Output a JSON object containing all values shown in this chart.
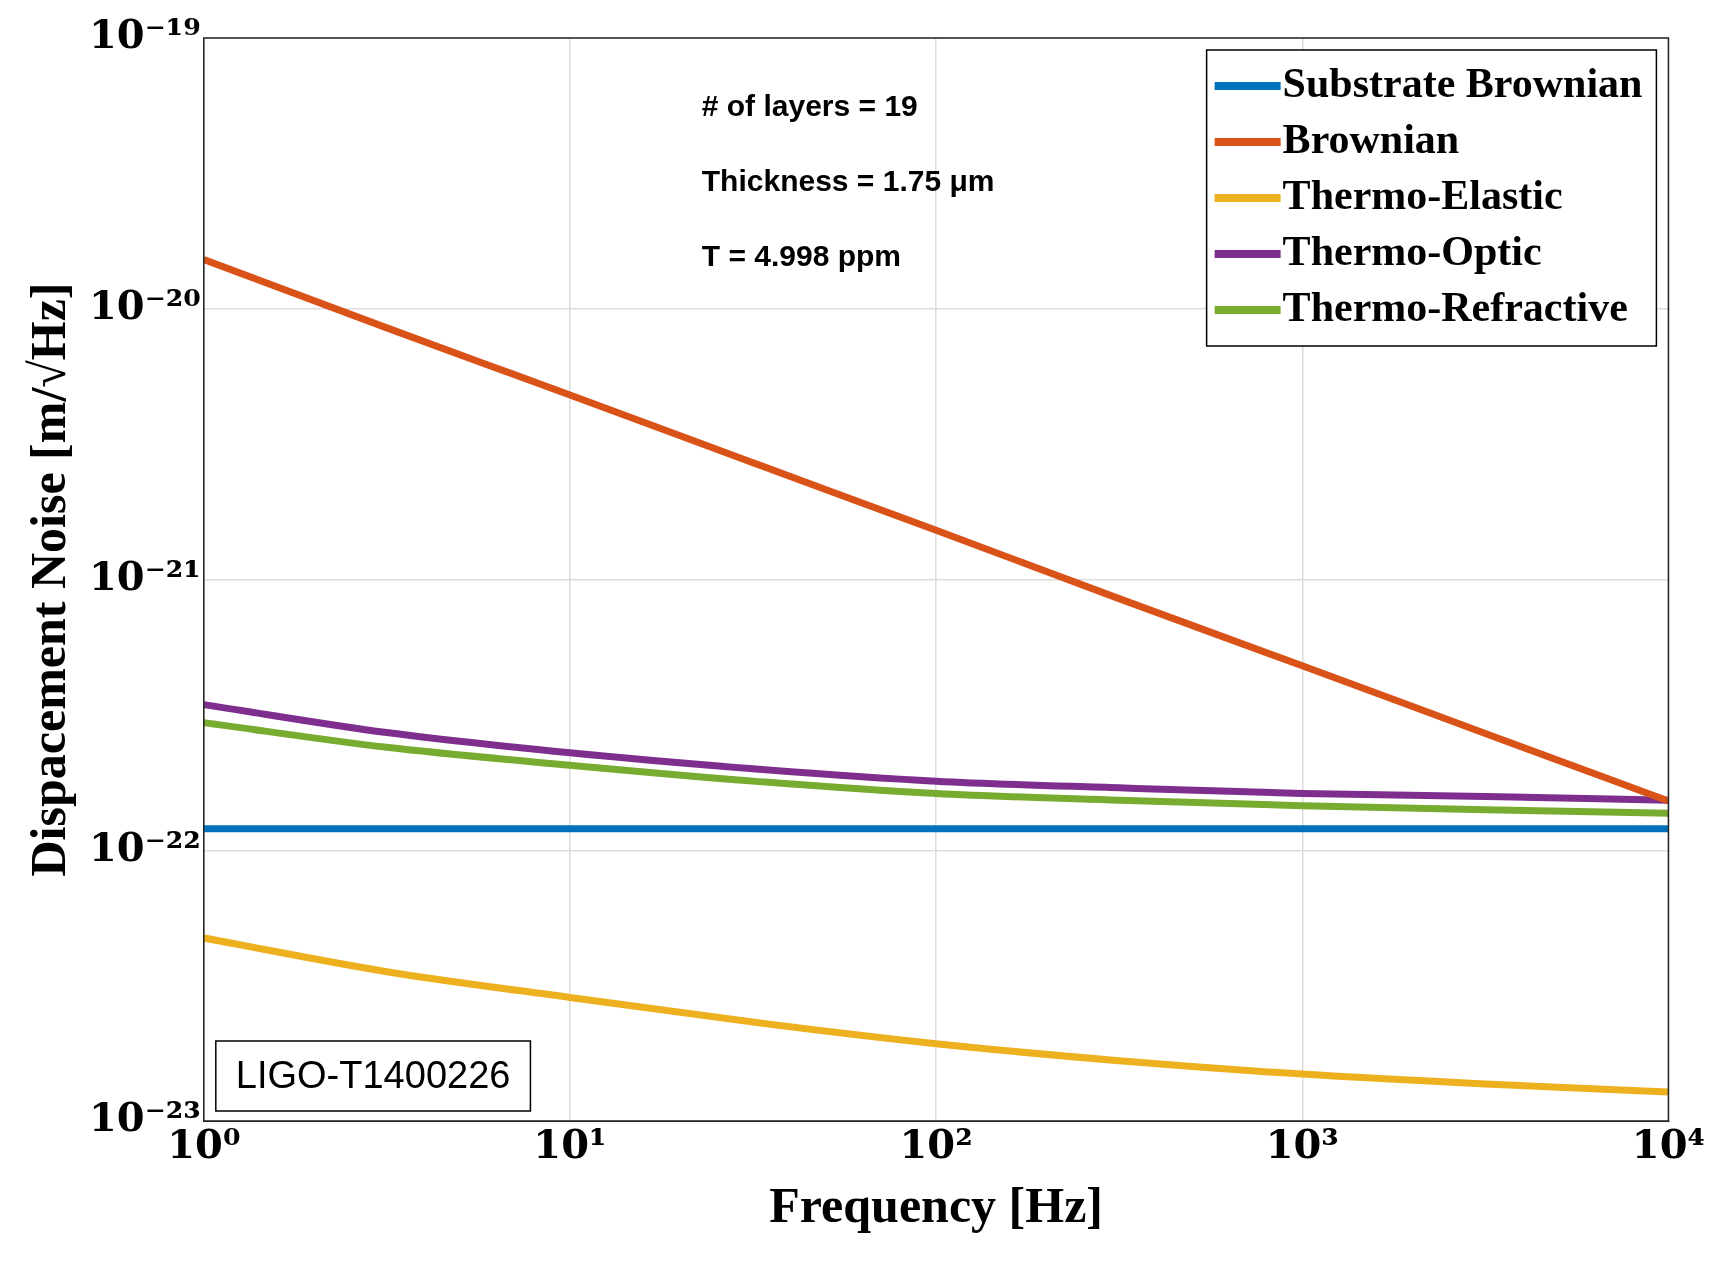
{
  "chart_data": {
    "type": "line",
    "xlabel": "Frequency [Hz]",
    "ylabel": "Dispacement Noise [m/√Hz]",
    "log": "xy",
    "grid": true,
    "legend": "top right",
    "xlim": [
      1,
      10000
    ],
    "xticks": [
      {
        "value": 1,
        "label": "10⁰"
      },
      {
        "value": 10,
        "label": "10¹"
      },
      {
        "value": 100,
        "label": "10²"
      },
      {
        "value": 1000,
        "label": "10³"
      },
      {
        "value": 10000,
        "label": "10⁴"
      }
    ],
    "ylim": [
      1e-23,
      1e-19
    ],
    "yticks": [
      {
        "value": 1e-23,
        "label": "10⁻²³"
      },
      {
        "value": 1e-22,
        "label": "10⁻²²"
      },
      {
        "value": 1e-21,
        "label": "10⁻²¹"
      },
      {
        "value": 1e-20,
        "label": "10⁻²⁰"
      },
      {
        "value": 1e-19,
        "label": "10⁻¹⁹"
      }
    ],
    "x": [
      1,
      3.16,
      10,
      31.6,
      100,
      316,
      1000,
      3162,
      10000
    ],
    "series": [
      {
        "name": "Substrate Brownian",
        "color": "#0072bd",
        "values": [
          1.2e-22,
          1.2e-22,
          1.2e-22,
          1.2e-22,
          1.2e-22,
          1.2e-22,
          1.2e-22,
          1.2e-22,
          1.2e-22
        ]
      },
      {
        "name": "Brownian",
        "color": "#d95319",
        "values": [
          1.52e-20,
          8.5e-21,
          4.8e-21,
          2.7e-21,
          1.52e-21,
          8.5e-22,
          4.8e-22,
          2.7e-22,
          1.52e-22
        ]
      },
      {
        "name": "Thermo-Elastic",
        "color": "#edb120",
        "values": [
          4.74e-23,
          3.56e-23,
          2.86e-23,
          2.32e-23,
          1.93e-23,
          1.67e-23,
          1.49e-23,
          1.37e-23,
          1.28e-23
        ]
      },
      {
        "name": "Thermo-Optic",
        "color": "#7e2f8e",
        "values": [
          3.45e-22,
          2.72e-22,
          2.29e-22,
          2e-22,
          1.8e-22,
          1.7e-22,
          1.62e-22,
          1.58e-22,
          1.53e-22
        ]
      },
      {
        "name": "Thermo-Refractive",
        "color": "#77ac30",
        "values": [
          2.96e-22,
          2.4e-22,
          2.06e-22,
          1.8e-22,
          1.62e-22,
          1.53e-22,
          1.46e-22,
          1.41e-22,
          1.37e-22
        ]
      }
    ],
    "annotations": [
      "# of layers = 19",
      "Thickness = 1.75 μm",
      "T = 4.998 ppm",
      "LIGO-T1400226"
    ]
  }
}
